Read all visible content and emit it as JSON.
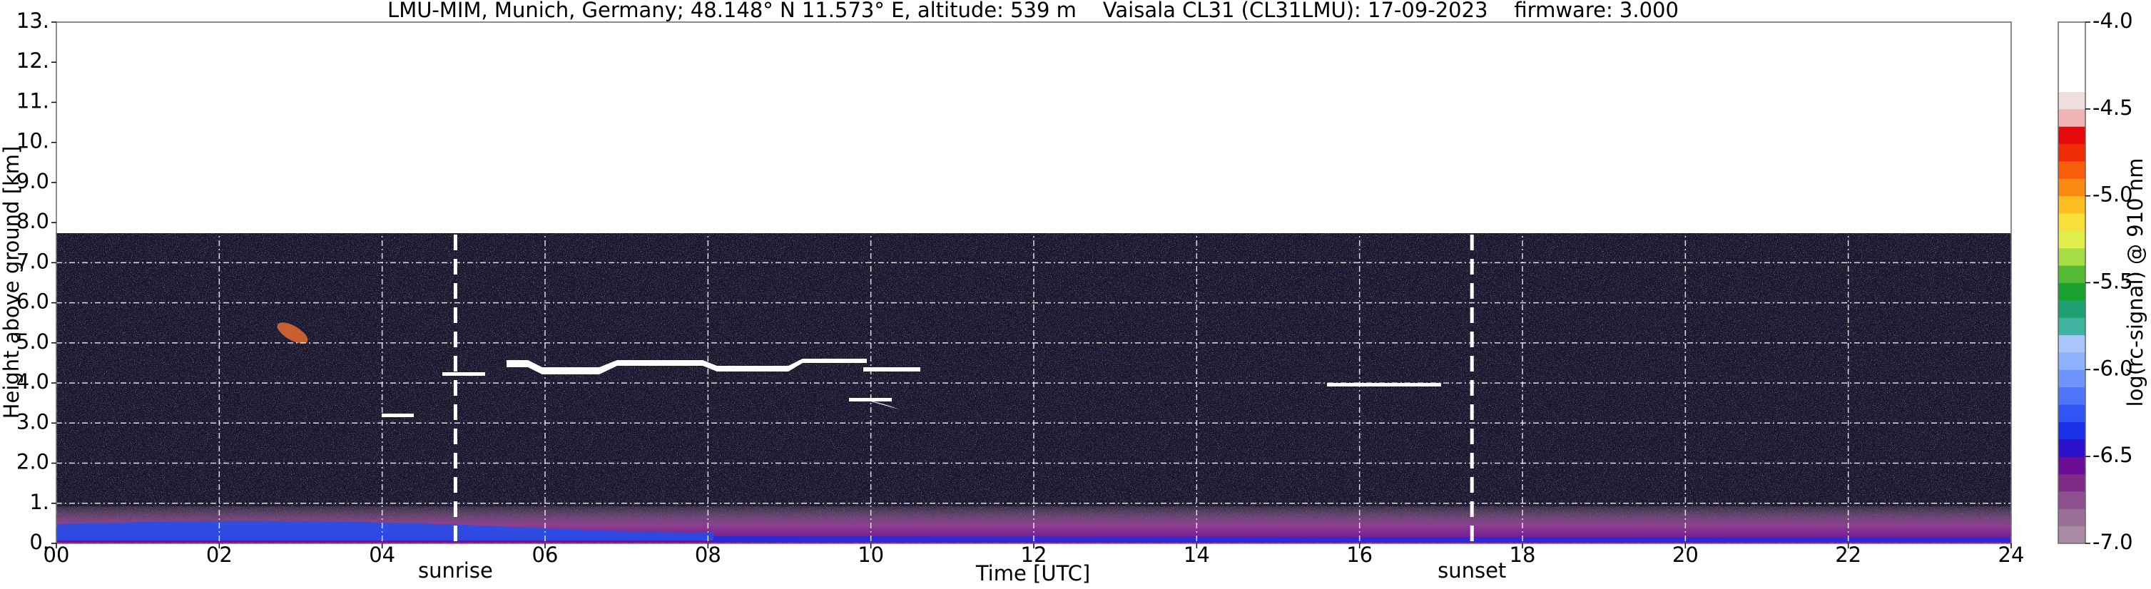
{
  "chart_data": {
    "type": "heatmap",
    "title": "LMU-MIM, Munich, Germany; 48.148° N 11.573° E, altitude: 539 m    Vaisala CL31 (CL31LMU): 17-09-2023    firmware: 3.000",
    "xlabel": "Time [UTC]",
    "ylabel": "Height above ground [km]",
    "xlim": [
      0,
      24
    ],
    "ylim": [
      0,
      13
    ],
    "xticks": [
      {
        "value": 0,
        "label": "00"
      },
      {
        "value": 2,
        "label": "02"
      },
      {
        "value": 4,
        "label": "04"
      },
      {
        "value": 6,
        "label": "06"
      },
      {
        "value": 8,
        "label": "08"
      },
      10,
      12,
      14,
      16,
      18,
      20,
      22,
      24
    ],
    "yticks": [
      {
        "value": 0,
        "label": "0."
      },
      {
        "value": 1,
        "label": "1."
      },
      {
        "value": 2,
        "label": "2.0"
      },
      {
        "value": 3,
        "label": "3.0"
      },
      {
        "value": 4,
        "label": "4.0"
      },
      {
        "value": 5,
        "label": "5.0"
      },
      {
        "value": 6,
        "label": "6.0"
      },
      {
        "value": 7,
        "label": "7.0"
      },
      {
        "value": 8,
        "label": "8.0"
      },
      {
        "value": 9,
        "label": "9.0"
      },
      {
        "value": 10,
        "label": "10."
      },
      {
        "value": 11,
        "label": "11."
      },
      {
        "value": 12,
        "label": "12."
      },
      {
        "value": 13,
        "label": "13."
      }
    ],
    "grid": true,
    "annotations": [
      {
        "x": 4.9,
        "text": "sunrise"
      },
      {
        "x": 17.38,
        "text": "sunset"
      }
    ],
    "colorbar": {
      "label": "log(rc-signal) @ 910 nm",
      "lim": [
        -7.0,
        -4.0
      ],
      "ticks": [
        {
          "value": -7.0,
          "label": "-7.0"
        },
        {
          "value": -6.5,
          "label": "-6.5"
        },
        {
          "value": -6.0,
          "label": "-6.0"
        },
        {
          "value": -5.5,
          "label": "-5.5"
        },
        {
          "value": -5.0,
          "label": "-5.0"
        },
        {
          "value": -4.5,
          "label": "-4.5"
        },
        {
          "value": -4.0,
          "label": "-4.0"
        }
      ],
      "colors": [
        "#a98ba6",
        "#9c6f99",
        "#8e4f8d",
        "#7e2a86",
        "#6c0c94",
        "#2a10c8",
        "#1830e8",
        "#2f55f5",
        "#4f75fb",
        "#6f95fd",
        "#8fb0fd",
        "#a9c6fb",
        "#3fb2a0",
        "#1fa070",
        "#18a030",
        "#52bb33",
        "#a5dd44",
        "#e0ef4a",
        "#f7e03a",
        "#fbbd1f",
        "#fb8a12",
        "#f75e0a",
        "#ef2c05",
        "#e40a0a",
        "#f1b4b4",
        "#efdede",
        "#ffffff",
        "#ffffff",
        "#ffffff",
        "#ffffff"
      ]
    }
  }
}
